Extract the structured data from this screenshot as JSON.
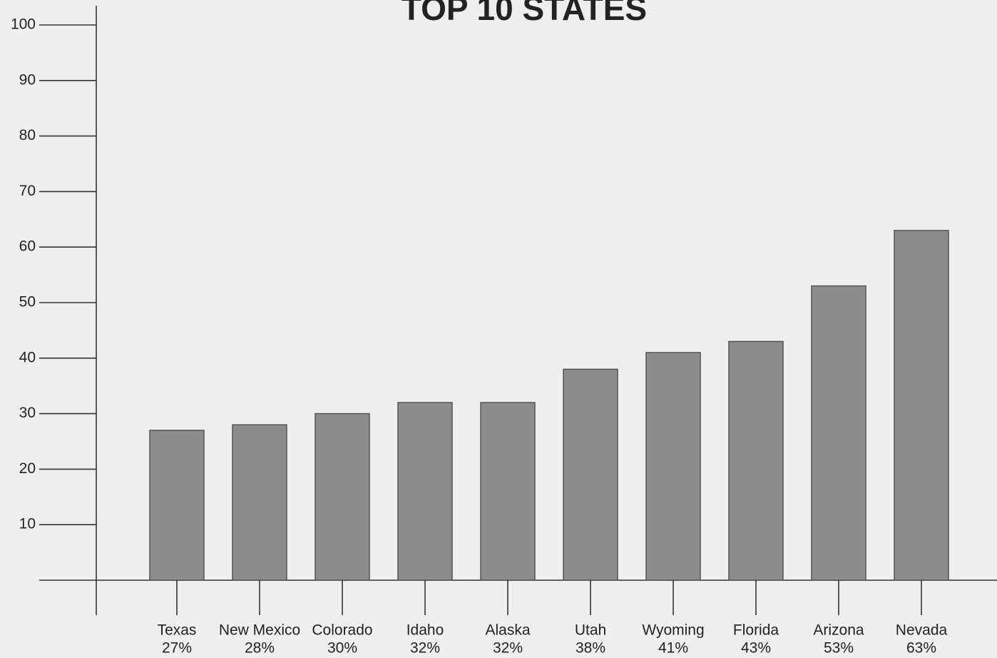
{
  "chart_data": {
    "type": "bar",
    "title": "TOP 10 STATES",
    "categories": [
      "Texas",
      "New Mexico",
      "Colorado",
      "Idaho",
      "Alaska",
      "Utah",
      "Wyoming",
      "Florida",
      "Arizona",
      "Nevada"
    ],
    "values": [
      27,
      28,
      30,
      32,
      32,
      38,
      41,
      43,
      53,
      63
    ],
    "value_labels": [
      "27%",
      "28%",
      "30%",
      "32%",
      "32%",
      "38%",
      "41%",
      "43%",
      "53%",
      "63%"
    ],
    "color": "#8c8c8c",
    "ylim": [
      0,
      100
    ],
    "yticks": [
      10,
      20,
      30,
      40,
      50,
      60,
      70,
      80,
      90,
      100
    ],
    "grid": false
  }
}
